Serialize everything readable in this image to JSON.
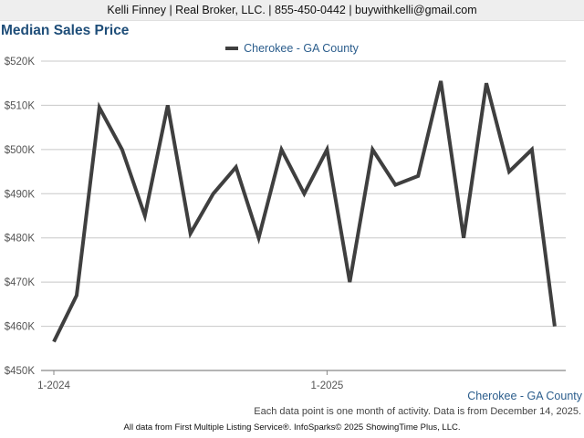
{
  "header": {
    "contact_line": "Kelli Finney | Real Broker, LLC. | 855-450-0442 | buywithkelli@gmail.com"
  },
  "chart_data": {
    "type": "line",
    "title": "Median Sales Price",
    "xlabel": "",
    "ylabel": "",
    "x": [
      "2024-01",
      "2024-02",
      "2024-03",
      "2024-04",
      "2024-05",
      "2024-06",
      "2024-07",
      "2024-08",
      "2024-09",
      "2024-10",
      "2024-11",
      "2024-12",
      "2025-01",
      "2025-02",
      "2025-03",
      "2025-04",
      "2025-05",
      "2025-06",
      "2025-07",
      "2025-08",
      "2025-09",
      "2025-10",
      "2025-11"
    ],
    "series": [
      {
        "name": "Cherokee - GA County",
        "values": [
          456500,
          467000,
          509500,
          500000,
          485000,
          510000,
          481000,
          490000,
          496000,
          480000,
          500000,
          490000,
          500000,
          470000,
          500000,
          492000,
          494000,
          515500,
          480000,
          515000,
          495000,
          500000,
          460000
        ]
      }
    ],
    "y_ticks": [
      "$450K",
      "$460K",
      "$470K",
      "$480K",
      "$490K",
      "$500K",
      "$510K",
      "$520K"
    ],
    "x_tick_labels": [
      {
        "index": 0,
        "label": "1-2024"
      },
      {
        "index": 12,
        "label": "1-2025"
      }
    ],
    "ylim": [
      450000,
      520000
    ],
    "grid": true,
    "legend": "top-center",
    "series_color": "#3f3f3f"
  },
  "region_label": "Cherokee - GA County",
  "note": "Each data point is one month of activity. Data is from December 14, 2025.",
  "footer": "All data from First Multiple Listing Service®. InfoSparks© 2025 ShowingTime Plus, LLC."
}
